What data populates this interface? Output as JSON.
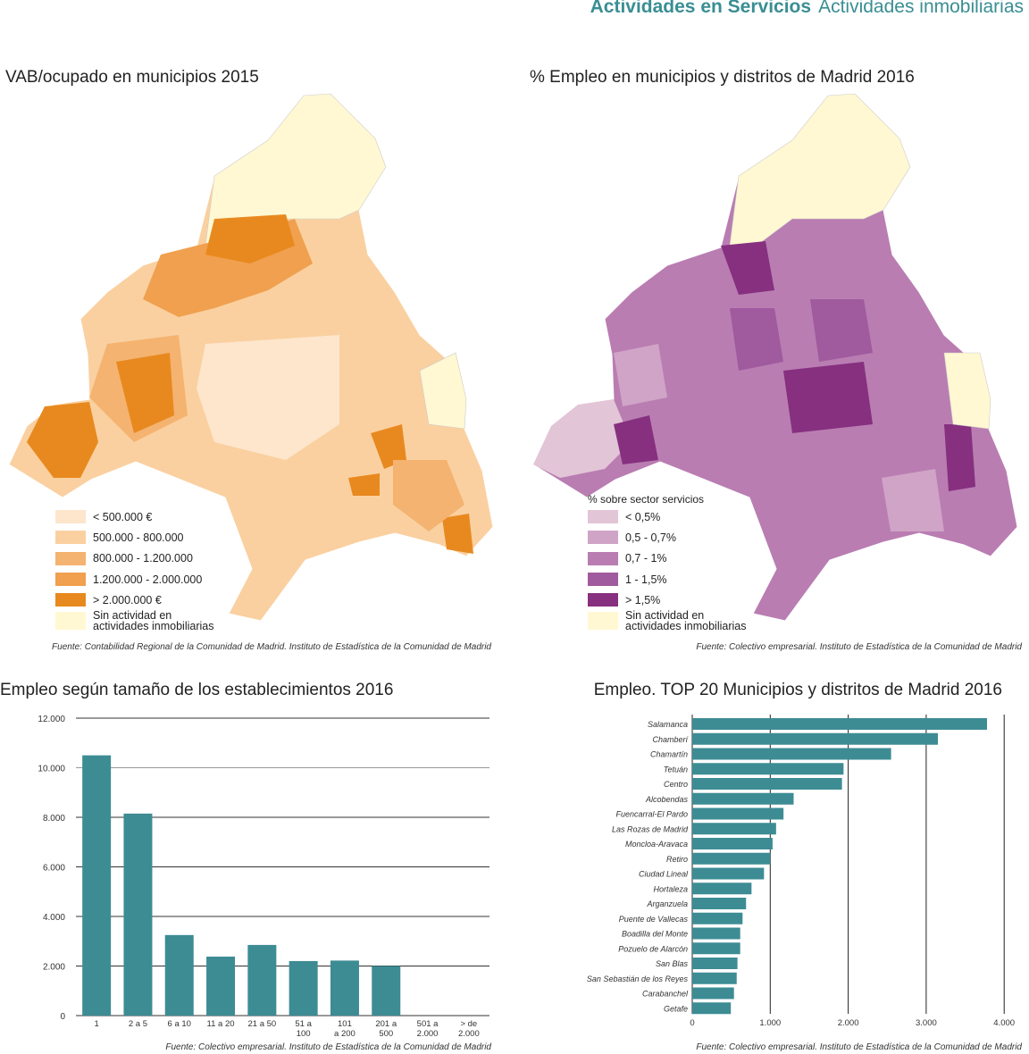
{
  "header": {
    "section": "Actividades en Servicios",
    "subsection": "Actividades inmobiliarias"
  },
  "colors": {
    "teal": "#3d8c94",
    "base": "#fff8d2"
  },
  "map_left": {
    "title": "VAB/ocupado en municipios  2015",
    "legend": [
      {
        "label": "< 500.000 €",
        "color": "#fde6cc"
      },
      {
        "label": "500.000 - 800.000",
        "color": "#fad0a0"
      },
      {
        "label": "800.000 - 1.200.000",
        "color": "#f4b370"
      },
      {
        "label": "1.200.000 - 2.000.000",
        "color": "#f0a04e"
      },
      {
        "label": "> 2.000.000 €",
        "color": "#e8891f"
      },
      {
        "label": "Sin actividad en actividades inmobiliarias",
        "label1": "Sin actividad en",
        "label2": "actividades inmobiliarias",
        "color": "#fff8d2"
      }
    ],
    "source": "Fuente: Contabilidad Regional de la Comunidad de Madrid. Instituto de Estadística de la Comunidad de Madrid"
  },
  "map_right": {
    "title": "% Empleo en municipios y distritos de Madrid  2016",
    "legend_title": "% sobre sector servicios",
    "legend": [
      {
        "label": "< 0,5%",
        "color": "#e2c5d6"
      },
      {
        "label": "0,5 - 0,7%",
        "color": "#d0a4c6"
      },
      {
        "label": "0,7 - 1%",
        "color": "#b97db2"
      },
      {
        "label": "1 - 1,5%",
        "color": "#a05a9e"
      },
      {
        "label": "> 1,5%",
        "color": "#86307f"
      },
      {
        "label": "Sin actividad en actividades inmobiliarias",
        "label1": "Sin actividad en",
        "label2": "actividades inmobiliarias",
        "color": "#fff8d2"
      }
    ],
    "source": "Fuente: Colectivo empresarial. Instituto de Estadística de la Comunidad de Madrid"
  },
  "chart_data": [
    {
      "type": "bar",
      "title": "Empleo según tamaño de los establecimientos  2016",
      "categories": [
        "1",
        "2 a 5",
        "6 a 10",
        "11 a 20",
        "21 a 50",
        "51 a 100",
        "101 a 200",
        "201 a 500",
        "501 a 2.000",
        "> de 2.000"
      ],
      "category_lines": [
        [
          "1"
        ],
        [
          "2 a 5"
        ],
        [
          "6 a 10"
        ],
        [
          "11 a 20"
        ],
        [
          "21 a 50"
        ],
        [
          "51 a",
          "100"
        ],
        [
          "101",
          "a 200"
        ],
        [
          "201 a",
          "500"
        ],
        [
          "501 a",
          "2.000"
        ],
        [
          "> de",
          "2.000"
        ]
      ],
      "values": [
        10500,
        8150,
        3250,
        2380,
        2850,
        2200,
        2220,
        2000,
        0,
        0
      ],
      "ylim": [
        0,
        12000
      ],
      "yticks": [
        "0",
        "2.000",
        "4.000",
        "6.000",
        "8.000",
        "10.000",
        "12.000"
      ],
      "grid": true,
      "source": "Fuente: Colectivo empresarial. Instituto de Estadística de la Comunidad de Madrid"
    },
    {
      "type": "bar",
      "orientation": "horizontal",
      "title": "Empleo. TOP 20 Municipios y distritos de Madrid  2016",
      "categories": [
        "Salamanca",
        "Chamberí",
        "Chamartín",
        "Tetuán",
        "Centro",
        "Alcobendas",
        "Fuencarral-El Pardo",
        "Las Rozas de Madrid",
        "Moncloa-Aravaca",
        "Retiro",
        "Ciudad Lineal",
        "Hortaleza",
        "Arganzuela",
        "Puente de Vallecas",
        "Boadilla del Monte",
        "Pozuelo de Alarcón",
        "San Blas",
        "San Sebastián de los Reyes",
        "Carabanchel",
        "Getafe"
      ],
      "values": [
        3780,
        3150,
        2550,
        1940,
        1920,
        1300,
        1170,
        1075,
        1030,
        1000,
        920,
        760,
        690,
        645,
        615,
        615,
        580,
        570,
        535,
        495
      ],
      "xlim": [
        0,
        4000
      ],
      "xticks": [
        "0",
        "1.000",
        "2.000",
        "3.000",
        "4.000"
      ],
      "grid": true,
      "source": "Fuente: Colectivo empresarial. Instituto de Estadística de la Comunidad de Madrid"
    }
  ]
}
